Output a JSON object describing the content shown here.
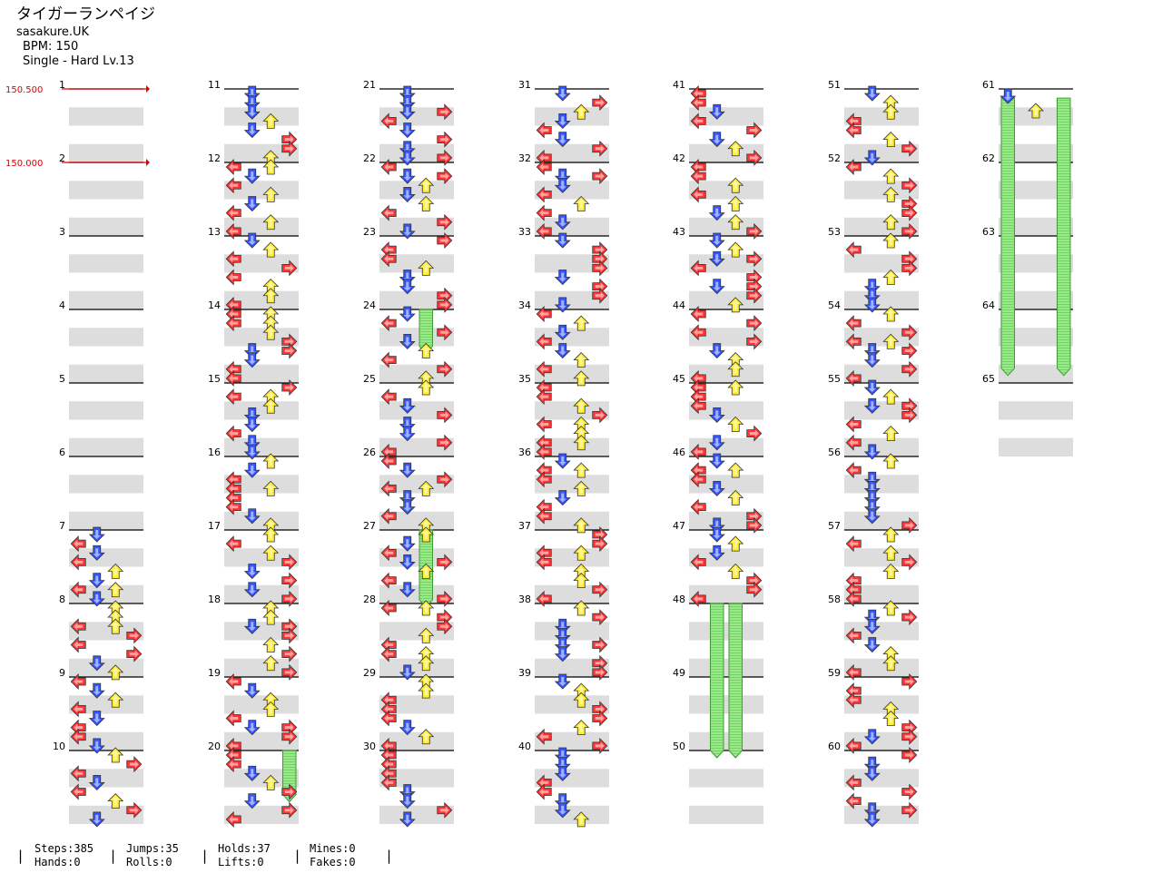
{
  "song": {
    "title": "タイガーランペイジ",
    "artist": "sasakure.UK",
    "bpm_line": "BPM: 150",
    "difficulty_line": "Single - Hard  Lv.13"
  },
  "bpm_markers": [
    {
      "measure": 1,
      "label": "150.500"
    },
    {
      "measure": 2,
      "label": "150.000"
    }
  ],
  "colors": {
    "left": "#ff3333",
    "down": "#3355ff",
    "up": "#ffee33",
    "right": "#ff3333",
    "hold": "#88e27a",
    "bpm": "#dd0000",
    "lane_shade": "#dddddd"
  },
  "chart_data": {
    "type": "table",
    "columns": [
      {
        "measures": [
          1,
          2,
          3,
          4,
          5,
          6,
          7,
          8,
          9,
          10
        ]
      },
      {
        "measures": [
          11,
          12,
          13,
          14,
          15,
          16,
          17,
          18,
          19,
          20
        ]
      },
      {
        "measures": [
          21,
          22,
          23,
          24,
          25,
          26,
          27,
          28,
          29,
          30
        ]
      },
      {
        "measures": [
          31,
          32,
          33,
          34,
          35,
          36,
          37,
          38,
          39,
          40
        ]
      },
      {
        "measures": [
          41,
          42,
          43,
          44,
          45,
          46,
          47,
          48,
          49,
          50
        ]
      },
      {
        "measures": [
          51,
          52,
          53,
          54,
          55,
          56,
          57,
          58,
          59,
          60
        ]
      },
      {
        "measures": [
          61,
          62,
          63,
          64,
          65
        ]
      }
    ],
    "holds": [
      {
        "measure_start": 48,
        "beat": 0,
        "measure_end": 50,
        "lane": "down"
      },
      {
        "measure_start": 48,
        "beat": 0,
        "measure_end": 50,
        "lane": "up"
      },
      {
        "measure_start": 27,
        "beat": 0,
        "measure_end": 27.95,
        "lane": "up"
      },
      {
        "measure_start": 24,
        "beat": 0,
        "measure_end": 24.5,
        "lane": "up"
      },
      {
        "measure_start": 20,
        "beat": 0,
        "measure_end": 20.6,
        "lane": "right"
      },
      {
        "measure_start": 61,
        "beat": 0.5,
        "measure_end": 64.8,
        "lane": "left"
      },
      {
        "measure_start": 61,
        "beat": 0.5,
        "measure_end": 64.8,
        "lane": "right"
      }
    ]
  },
  "stats": {
    "steps": "Steps:385",
    "hands": "Hands:0",
    "jumps": "Jumps:35",
    "rolls": "Rolls:0",
    "holds": "Holds:37",
    "lifts": "Lifts:0",
    "mines": "Mines:0",
    "fakes": "Fakes:0"
  }
}
